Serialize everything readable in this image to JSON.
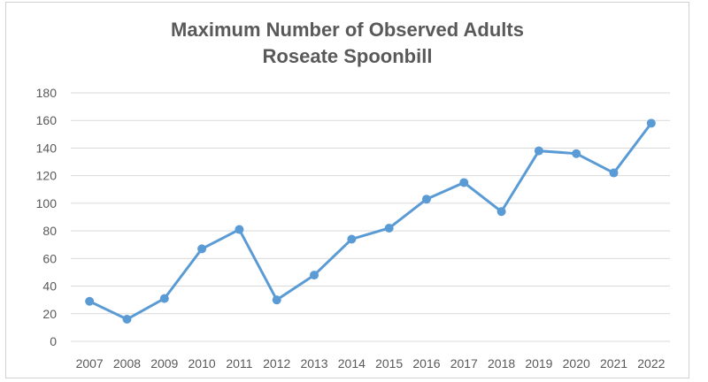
{
  "chart_data": {
    "type": "line",
    "title_line1": "Maximum Number of Observed Adults",
    "title_line2": "Roseate Spoonbill",
    "categories": [
      "2007",
      "2008",
      "2009",
      "2010",
      "2011",
      "2012",
      "2013",
      "2014",
      "2015",
      "2016",
      "2017",
      "2018",
      "2019",
      "2020",
      "2021",
      "2022"
    ],
    "series": [
      {
        "values": [
          29,
          16,
          31,
          67,
          81,
          30,
          48,
          74,
          82,
          103,
          115,
          94,
          138,
          136,
          122,
          158
        ]
      }
    ],
    "ylim": [
      0,
      180
    ],
    "yticks": [
      "0",
      "20",
      "40",
      "60",
      "80",
      "100",
      "120",
      "140",
      "160",
      "180"
    ],
    "grid": true,
    "legend": "none",
    "colors": {
      "line": "#5b9bd5",
      "grid": "#d9d9d9",
      "text": "#595959"
    }
  }
}
